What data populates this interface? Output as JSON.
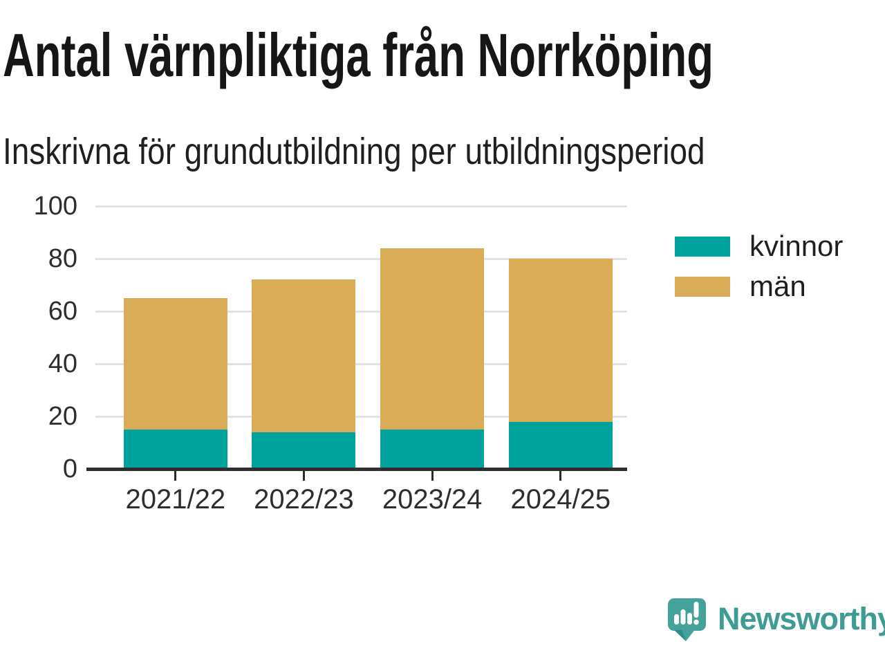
{
  "header": {
    "title": "Antal värnpliktiga från Norrköping",
    "subtitle": "Inskrivna för grundutbildning per utbildningsperiod"
  },
  "chart_data": {
    "type": "bar",
    "stacked": true,
    "title": "Antal värnpliktiga från Norrköping",
    "subtitle": "Inskrivna för grundutbildning per utbildningsperiod",
    "categories": [
      "2021/22",
      "2022/23",
      "2023/24",
      "2024/25"
    ],
    "series": [
      {
        "name": "kvinnor",
        "color": "#00A39B",
        "values": [
          15,
          14,
          15,
          18
        ]
      },
      {
        "name": "män",
        "color": "#DAAC58",
        "values": [
          50,
          58,
          69,
          62
        ]
      }
    ],
    "totals": [
      65,
      72,
      84,
      80
    ],
    "xlabel": "",
    "ylabel": "",
    "ylim": [
      0,
      100
    ],
    "yticks": [
      0,
      20,
      40,
      60,
      80,
      100
    ],
    "grid": true,
    "legend_position": "right",
    "grid_color": "#E2E2E2",
    "axis_color": "#2E2E2E"
  },
  "footer": {
    "brand": "Newsworthy",
    "brand_color": "#3F9C95",
    "logo_bubble_color": "#45A29A",
    "logo_fold_color": "#2E8C85"
  }
}
